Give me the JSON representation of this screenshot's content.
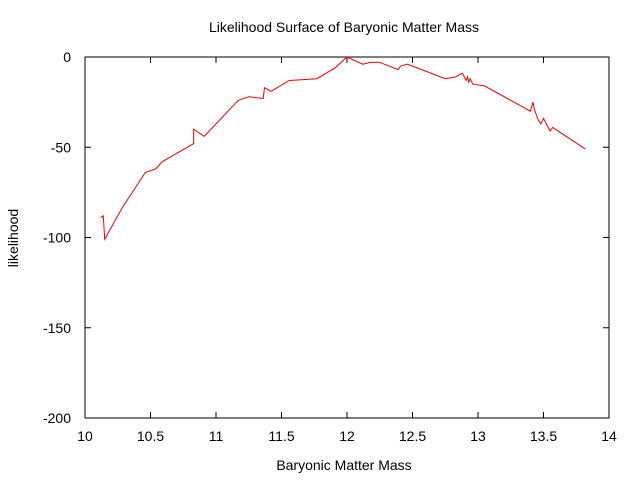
{
  "chart_data": {
    "type": "line",
    "title": "Likelihood Surface of Baryonic Matter Mass",
    "xlabel": "Baryonic Matter Mass",
    "ylabel": "likelihood",
    "xlim": [
      10,
      14
    ],
    "ylim": [
      -200,
      0
    ],
    "x_ticks": [
      10,
      10.5,
      11,
      11.5,
      12,
      12.5,
      13,
      13.5,
      14
    ],
    "x_tick_labels": [
      "10",
      "10.5",
      "11",
      "11.5",
      "12",
      "12.5",
      "13",
      "13.5",
      "14"
    ],
    "y_ticks": [
      0,
      -50,
      -100,
      -150,
      -200
    ],
    "y_tick_labels": [
      "0",
      "-50",
      "-100",
      "-150",
      "-200"
    ],
    "grid": false,
    "legend": "none",
    "series": [
      {
        "name": "likelihood",
        "color": "#ee0000",
        "x": [
          10.12,
          10.14,
          10.15,
          10.28,
          10.46,
          10.54,
          10.59,
          10.83,
          10.83,
          10.91,
          11.17,
          11.25,
          11.36,
          11.37,
          11.42,
          11.56,
          11.77,
          11.91,
          12.0,
          12.12,
          12.18,
          12.25,
          12.39,
          12.41,
          12.46,
          12.57,
          12.75,
          12.83,
          12.88,
          12.91,
          12.92,
          12.93,
          12.94,
          12.96,
          13.05,
          13.4,
          13.42,
          13.43,
          13.46,
          13.48,
          13.5,
          13.55,
          13.57,
          13.82
        ],
        "y": [
          -89,
          -88,
          -101,
          -84,
          -64,
          -62,
          -58,
          -48,
          -40,
          -44,
          -24,
          -22,
          -23,
          -17,
          -19,
          -13,
          -12,
          -6,
          0,
          -4,
          -3,
          -3,
          -7,
          -5,
          -4,
          -7,
          -12,
          -11,
          -9,
          -13,
          -11,
          -14,
          -12,
          -15,
          -16,
          -30,
          -25,
          -29,
          -35,
          -37,
          -34,
          -41,
          -39,
          -51
        ]
      }
    ]
  }
}
